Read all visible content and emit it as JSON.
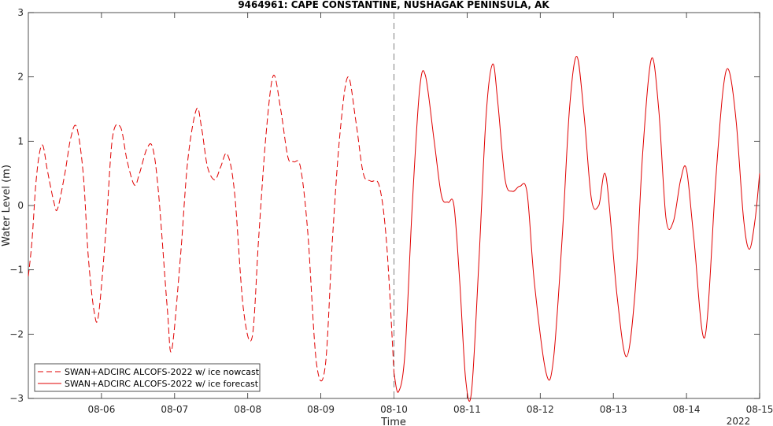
{
  "chart_data": {
    "type": "line",
    "title": "9464961: CAPE CONSTANTINE, NUSHAGAK PENINSULA, AK",
    "xlabel": "Time",
    "ylabel": "Water Level (m)",
    "year_label": "2022",
    "x_unit": "date (August 2022), fractional day of month",
    "xlim": [
      5.0,
      15.0
    ],
    "ylim": [
      -3,
      3
    ],
    "yticks": [
      -3,
      -2,
      -1,
      0,
      1,
      2,
      3
    ],
    "xtick_values": [
      6,
      7,
      8,
      9,
      10,
      11,
      12,
      13,
      14,
      15
    ],
    "xtick_labels": [
      "08-06",
      "08-07",
      "08-08",
      "08-09",
      "08-10",
      "08-11",
      "08-12",
      "08-13",
      "08-14",
      "08-15"
    ],
    "nowcast_divider_x": 10.0,
    "legend": {
      "position": "bottom-left"
    },
    "colors": {
      "series": "#e00000",
      "axis": "#262626",
      "divider": "#808080"
    },
    "series": [
      {
        "name": "SWAN+ADCIRC ALCOFS-2022 w/ ice nowcast",
        "style": "dashed",
        "x": [
          5.0,
          5.05,
          5.1,
          5.15,
          5.2,
          5.26,
          5.35,
          5.4,
          5.5,
          5.58,
          5.66,
          5.75,
          5.82,
          5.9,
          5.96,
          6.06,
          6.15,
          6.26,
          6.35,
          6.45,
          6.52,
          6.62,
          6.7,
          6.78,
          6.9,
          6.96,
          7.08,
          7.18,
          7.3,
          7.37,
          7.45,
          7.55,
          7.63,
          7.72,
          7.82,
          7.94,
          8.06,
          8.15,
          8.25,
          8.35,
          8.45,
          8.55,
          8.63,
          8.72,
          8.82,
          8.94,
          9.06,
          9.16,
          9.26,
          9.37,
          9.48,
          9.58,
          9.68,
          9.8,
          9.9,
          10.0
        ],
        "y": [
          -1.1,
          -0.55,
          0.3,
          0.8,
          0.93,
          0.55,
          0.05,
          -0.05,
          0.5,
          1.05,
          1.22,
          0.5,
          -0.8,
          -1.65,
          -1.7,
          -0.4,
          1.05,
          1.22,
          0.7,
          0.32,
          0.5,
          0.88,
          0.9,
          0.2,
          -1.6,
          -2.25,
          -0.8,
          0.7,
          1.5,
          1.2,
          0.6,
          0.4,
          0.6,
          0.8,
          0.2,
          -1.6,
          -2.05,
          -0.5,
          1.1,
          2.02,
          1.5,
          0.75,
          0.68,
          0.6,
          -0.4,
          -2.45,
          -2.5,
          -0.5,
          1.1,
          2.0,
          1.3,
          0.5,
          0.38,
          0.3,
          -0.6,
          -2.6
        ]
      },
      {
        "name": "SWAN+ADCIRC ALCOFS-2022 w/ ice forecast",
        "style": "solid",
        "x": [
          10.0,
          10.06,
          10.15,
          10.25,
          10.35,
          10.43,
          10.55,
          10.65,
          10.74,
          10.82,
          10.9,
          10.98,
          11.06,
          11.16,
          11.26,
          11.35,
          11.42,
          11.52,
          11.62,
          11.72,
          11.82,
          11.92,
          12.08,
          12.18,
          12.3,
          12.4,
          12.5,
          12.6,
          12.7,
          12.8,
          12.9,
          13.05,
          13.18,
          13.3,
          13.4,
          13.52,
          13.62,
          13.72,
          13.82,
          13.92,
          14.0,
          14.1,
          14.25,
          14.4,
          14.5,
          14.58,
          14.68,
          14.78,
          14.86,
          14.94,
          15.0
        ],
        "y": [
          -2.6,
          -2.9,
          -2.3,
          0.0,
          1.8,
          2.02,
          1.0,
          0.15,
          0.05,
          0.0,
          -1.2,
          -2.7,
          -2.9,
          -0.9,
          1.4,
          2.2,
          1.6,
          0.4,
          0.22,
          0.3,
          0.2,
          -1.2,
          -2.6,
          -2.4,
          -0.5,
          1.5,
          2.32,
          1.4,
          0.1,
          0.0,
          0.45,
          -1.4,
          -2.35,
          -1.3,
          0.8,
          2.28,
          1.5,
          -0.2,
          -0.25,
          0.4,
          0.56,
          -0.5,
          -2.05,
          0.4,
          1.8,
          2.1,
          1.3,
          -0.2,
          -0.68,
          -0.2,
          0.5
        ]
      }
    ]
  }
}
